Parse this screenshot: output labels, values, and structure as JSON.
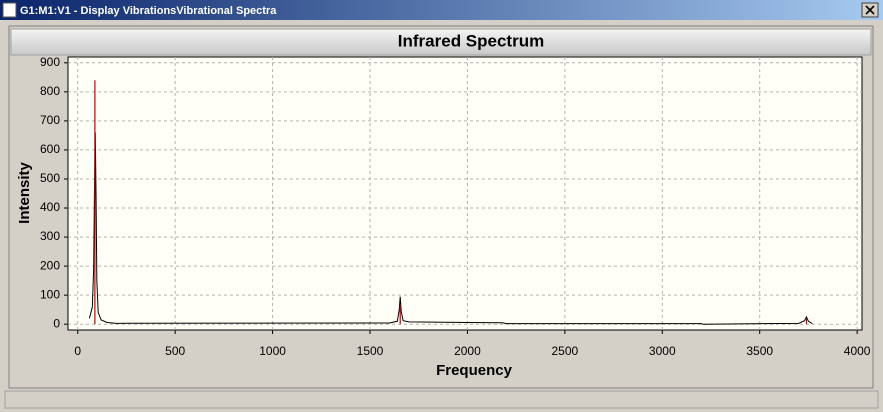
{
  "window_title": "G1:M1:V1 - Display VibrationsVibrational Spectra",
  "chart_data": {
    "type": "line",
    "title": "Infrared Spectrum",
    "x_label": "Frequency",
    "y_label": "Intensity",
    "xlim": [
      -50,
      4025
    ],
    "ylim": [
      -20,
      920
    ],
    "xticks": [
      0,
      500,
      1000,
      1500,
      2000,
      2500,
      3000,
      3500,
      4000
    ],
    "yticks": [
      0,
      100,
      200,
      300,
      400,
      500,
      600,
      700,
      800,
      900
    ],
    "grid": true,
    "series": [
      {
        "color": "#000000",
        "style": "line",
        "x": [
          60,
          75,
          82,
          86,
          90,
          94,
          98,
          105,
          120,
          150,
          200,
          1600,
          1640,
          1650,
          1655,
          1660,
          1670,
          1700,
          2000,
          2180,
          2200,
          3200,
          3210,
          3700,
          3730,
          3740,
          3750,
          3770
        ],
        "values": [
          20,
          60,
          200,
          480,
          660,
          440,
          150,
          40,
          15,
          6,
          3,
          4,
          10,
          50,
          95,
          45,
          12,
          8,
          6,
          5,
          2,
          2,
          0,
          3,
          12,
          25,
          10,
          2
        ]
      },
      {
        "color": "#c00000",
        "style": "stick",
        "x": [
          88,
          1655,
          3740
        ],
        "values": [
          840,
          65,
          20
        ]
      }
    ]
  }
}
